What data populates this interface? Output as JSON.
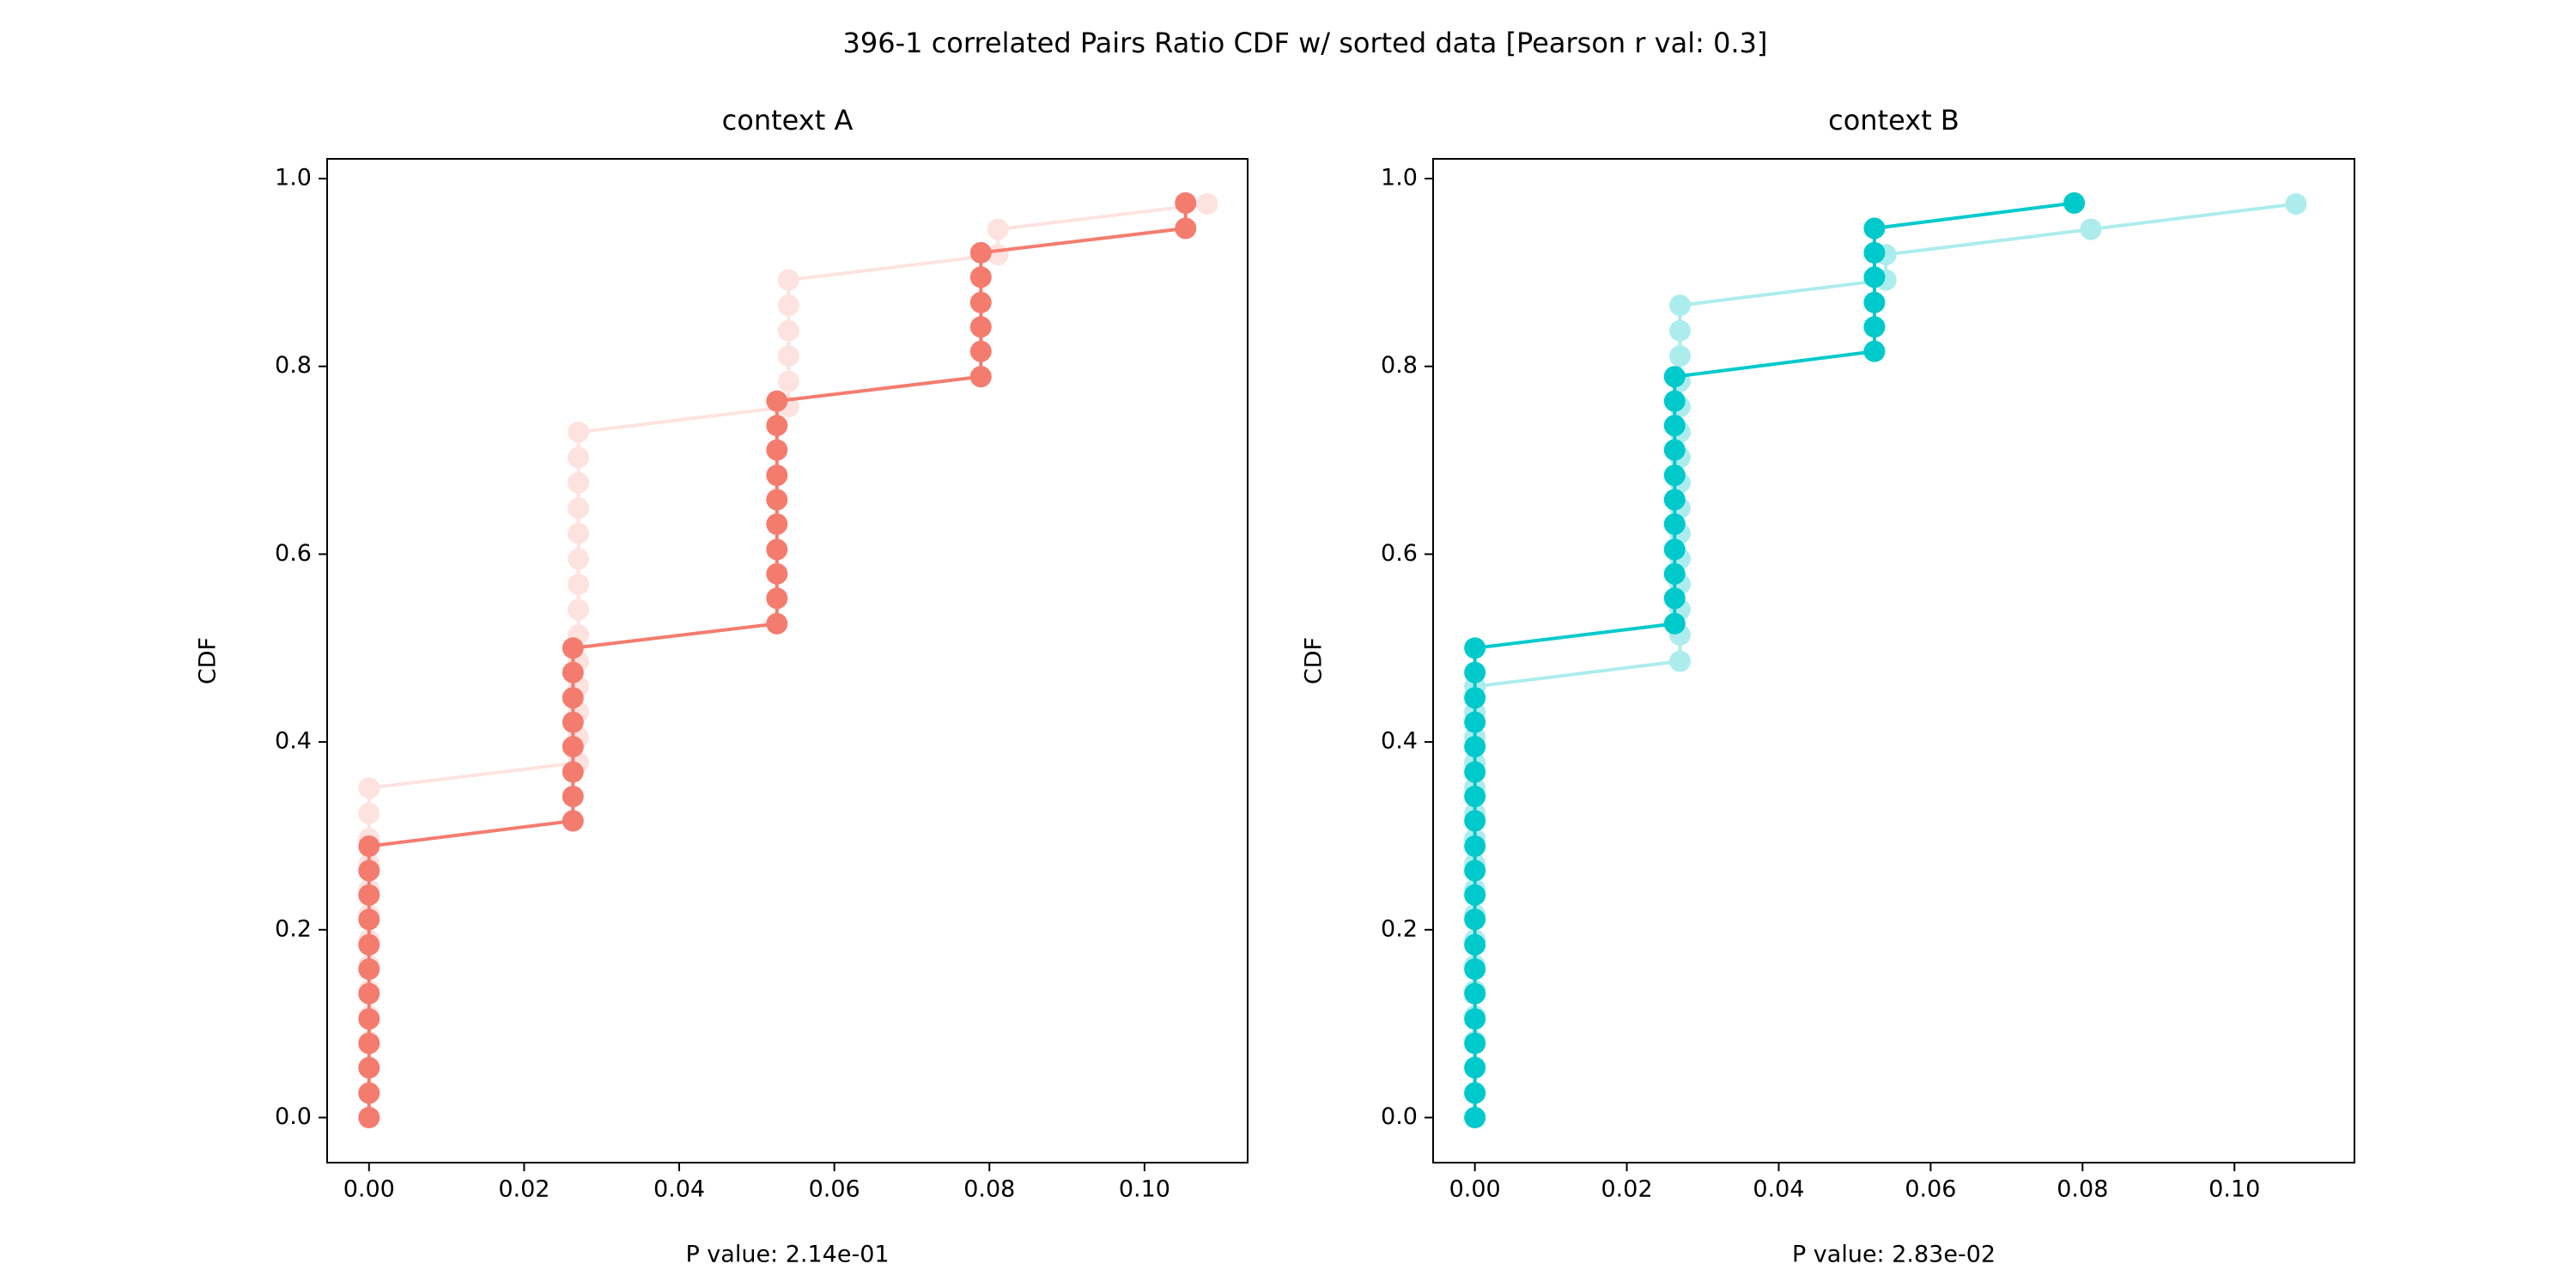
{
  "title": "396-1 correlated Pairs Ratio CDF w/ sorted data [Pearson r val: 0.3]",
  "chart_data": [
    {
      "type": "line",
      "title": "context A",
      "xlabel": "P value: 2.14e-01",
      "ylabel": "CDF",
      "xlim": [
        -0.0054,
        0.1133
      ],
      "ylim": [
        -0.048,
        1.021
      ],
      "xticks": [
        {
          "value": 0,
          "label": "0.00"
        },
        {
          "value": 0.02,
          "label": "0.02"
        },
        {
          "value": 0.04,
          "label": "0.04"
        },
        {
          "value": 0.06,
          "label": "0.06"
        },
        {
          "value": 0.08,
          "label": "0.08"
        },
        {
          "value": 0.1,
          "label": "0.10"
        }
      ],
      "yticks": [
        {
          "value": 0,
          "label": "0.0"
        },
        0.2,
        0.4,
        0.6,
        0.8,
        {
          "value": 1,
          "label": "1.0"
        }
      ],
      "series": [
        {
          "color": "#fde3e0",
          "x": [
            0,
            0,
            0,
            0,
            0,
            0,
            0,
            0,
            0,
            0,
            0,
            0,
            0,
            0,
            0.027,
            0.027,
            0.027,
            0.027,
            0.027,
            0.027,
            0.027,
            0.027,
            0.027,
            0.027,
            0.027,
            0.027,
            0.027,
            0.027,
            0.0541,
            0.0541,
            0.0541,
            0.0541,
            0.0541,
            0.0541,
            0.0811,
            0.0811,
            0.1081
          ],
          "values": [
            0,
            0.027,
            0.054,
            0.081,
            0.108,
            0.135,
            0.162,
            0.189,
            0.216,
            0.243,
            0.27,
            0.297,
            0.324,
            0.351,
            0.378,
            0.405,
            0.432,
            0.459,
            0.486,
            0.514,
            0.541,
            0.568,
            0.595,
            0.622,
            0.649,
            0.676,
            0.703,
            0.73,
            0.757,
            0.784,
            0.811,
            0.838,
            0.865,
            0.892,
            0.919,
            0.946,
            0.973
          ]
        },
        {
          "color": "#f47c6e",
          "x": [
            0,
            0,
            0,
            0,
            0,
            0,
            0,
            0,
            0,
            0,
            0,
            0,
            0.0263,
            0.0263,
            0.0263,
            0.0263,
            0.0263,
            0.0263,
            0.0263,
            0.0263,
            0.0526,
            0.0526,
            0.0526,
            0.0526,
            0.0526,
            0.0526,
            0.0526,
            0.0526,
            0.0526,
            0.0526,
            0.0789,
            0.0789,
            0.0789,
            0.0789,
            0.0789,
            0.0789,
            0.1053,
            0.1053
          ],
          "values": [
            0,
            0.026,
            0.053,
            0.079,
            0.105,
            0.132,
            0.158,
            0.184,
            0.211,
            0.237,
            0.263,
            0.289,
            0.316,
            0.342,
            0.368,
            0.395,
            0.421,
            0.447,
            0.474,
            0.5,
            0.526,
            0.553,
            0.579,
            0.605,
            0.632,
            0.658,
            0.684,
            0.711,
            0.737,
            0.763,
            0.789,
            0.816,
            0.842,
            0.868,
            0.895,
            0.921,
            0.947,
            0.974
          ]
        }
      ]
    },
    {
      "type": "line",
      "title": "context B",
      "xlabel": "P value: 2.83e-02",
      "ylabel": "CDF",
      "xlim": [
        -0.0055,
        0.1158
      ],
      "ylim": [
        -0.048,
        1.021
      ],
      "xticks": [
        {
          "value": 0,
          "label": "0.00"
        },
        {
          "value": 0.02,
          "label": "0.02"
        },
        {
          "value": 0.04,
          "label": "0.04"
        },
        {
          "value": 0.06,
          "label": "0.06"
        },
        {
          "value": 0.08,
          "label": "0.08"
        },
        {
          "value": 0.1,
          "label": "0.10"
        }
      ],
      "yticks": [
        {
          "value": 0,
          "label": "0.0"
        },
        0.2,
        0.4,
        0.6,
        0.8,
        {
          "value": 1,
          "label": "1.0"
        }
      ],
      "series": [
        {
          "color": "#adeced",
          "x": [
            0,
            0,
            0,
            0,
            0,
            0,
            0,
            0,
            0,
            0,
            0,
            0,
            0,
            0,
            0,
            0,
            0,
            0,
            0.027,
            0.027,
            0.027,
            0.027,
            0.027,
            0.027,
            0.027,
            0.027,
            0.027,
            0.027,
            0.027,
            0.027,
            0.027,
            0.027,
            0.027,
            0.0541,
            0.0541,
            0.0811,
            0.1081
          ],
          "values": [
            0,
            0.027,
            0.054,
            0.081,
            0.108,
            0.135,
            0.162,
            0.189,
            0.216,
            0.243,
            0.27,
            0.297,
            0.324,
            0.351,
            0.378,
            0.405,
            0.432,
            0.459,
            0.486,
            0.514,
            0.541,
            0.568,
            0.595,
            0.622,
            0.649,
            0.676,
            0.703,
            0.73,
            0.757,
            0.784,
            0.811,
            0.838,
            0.865,
            0.892,
            0.919,
            0.946,
            0.973
          ]
        },
        {
          "color": "#00c9cc",
          "x": [
            0,
            0,
            0,
            0,
            0,
            0,
            0,
            0,
            0,
            0,
            0,
            0,
            0,
            0,
            0,
            0,
            0,
            0,
            0,
            0,
            0.0263,
            0.0263,
            0.0263,
            0.0263,
            0.0263,
            0.0263,
            0.0263,
            0.0263,
            0.0263,
            0.0263,
            0.0263,
            0.0526,
            0.0526,
            0.0526,
            0.0526,
            0.0526,
            0.0526,
            0.0789
          ],
          "values": [
            0,
            0.026,
            0.053,
            0.079,
            0.105,
            0.132,
            0.158,
            0.184,
            0.211,
            0.237,
            0.263,
            0.289,
            0.316,
            0.342,
            0.368,
            0.395,
            0.421,
            0.447,
            0.474,
            0.5,
            0.526,
            0.553,
            0.579,
            0.605,
            0.632,
            0.658,
            0.684,
            0.711,
            0.737,
            0.763,
            0.789,
            0.816,
            0.842,
            0.868,
            0.895,
            0.921,
            0.947,
            0.974
          ]
        }
      ]
    }
  ]
}
